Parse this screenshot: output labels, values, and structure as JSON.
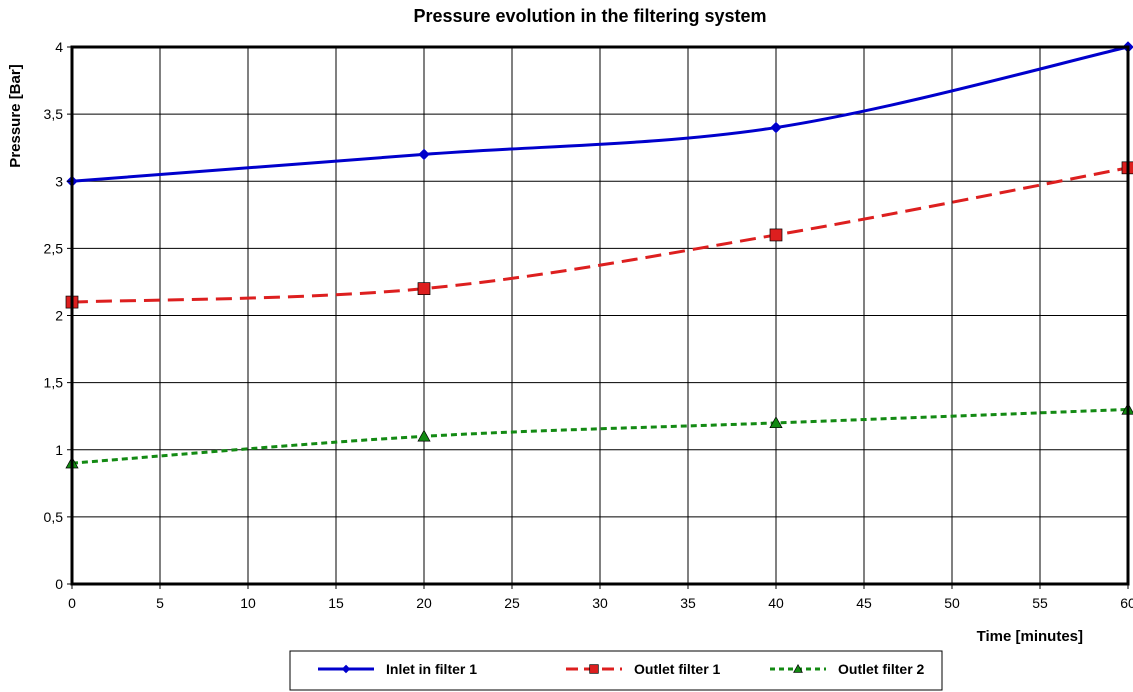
{
  "chart_data": {
    "type": "line",
    "title": "Pressure evolution in the filtering system",
    "xlabel": "Time [minutes]",
    "ylabel": "Pressure [Bar]",
    "xlim": [
      0,
      60
    ],
    "ylim": [
      0,
      4
    ],
    "x_ticks": [
      "0",
      "5",
      "10",
      "15",
      "20",
      "25",
      "30",
      "35",
      "40",
      "45",
      "50",
      "55",
      "60"
    ],
    "y_ticks": [
      "0",
      "0,5",
      "1",
      "1,5",
      "2",
      "2,5",
      "3",
      "3,5",
      "4"
    ],
    "x_tick_values": [
      0,
      5,
      10,
      15,
      20,
      25,
      30,
      35,
      40,
      45,
      50,
      55,
      60
    ],
    "y_tick_values": [
      0,
      0.5,
      1,
      1.5,
      2,
      2.5,
      3,
      3.5,
      4
    ],
    "x": [
      0,
      20,
      40,
      60
    ],
    "grid": true,
    "legend_position": "bottom",
    "series": [
      {
        "name": "Inlet in filter 1",
        "values": [
          3.0,
          3.2,
          3.4,
          4.0
        ],
        "color": "#0000cc",
        "line_style": "solid",
        "marker": "diamond"
      },
      {
        "name": "Outlet filter 1",
        "values": [
          2.1,
          2.2,
          2.6,
          3.1
        ],
        "color": "#dd1f1f",
        "line_style": "dashed",
        "marker": "square"
      },
      {
        "name": "Outlet filter 2",
        "values": [
          0.9,
          1.1,
          1.2,
          1.3
        ],
        "color": "#138a13",
        "line_style": "dotted",
        "marker": "triangle"
      }
    ]
  }
}
